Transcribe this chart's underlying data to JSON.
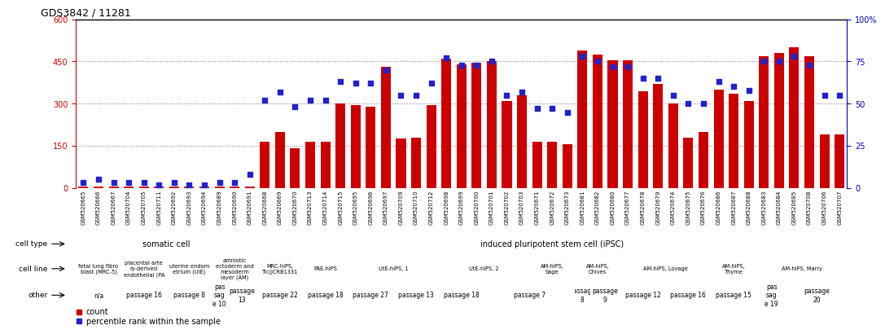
{
  "title": "GDS3842 / 11281",
  "samples": [
    "GSM520665",
    "GSM520666",
    "GSM520667",
    "GSM520704",
    "GSM520705",
    "GSM520711",
    "GSM520692",
    "GSM520693",
    "GSM520694",
    "GSM520689",
    "GSM520690",
    "GSM520691",
    "GSM520668",
    "GSM520669",
    "GSM520670",
    "GSM520713",
    "GSM520714",
    "GSM520715",
    "GSM520695",
    "GSM520696",
    "GSM520697",
    "GSM520709",
    "GSM520710",
    "GSM520712",
    "GSM520698",
    "GSM520699",
    "GSM520700",
    "GSM520701",
    "GSM520702",
    "GSM520703",
    "GSM520671",
    "GSM520672",
    "GSM520673",
    "GSM520681",
    "GSM520682",
    "GSM520680",
    "GSM520677",
    "GSM520678",
    "GSM520679",
    "GSM520674",
    "GSM520675",
    "GSM520676",
    "GSM520686",
    "GSM520687",
    "GSM520688",
    "GSM520683",
    "GSM520684",
    "GSM520685",
    "GSM520708",
    "GSM520706",
    "GSM520707"
  ],
  "counts": [
    5,
    5,
    5,
    5,
    5,
    5,
    5,
    5,
    5,
    5,
    5,
    5,
    165,
    200,
    140,
    165,
    165,
    300,
    295,
    290,
    430,
    175,
    180,
    295,
    460,
    440,
    445,
    450,
    310,
    330,
    165,
    165,
    155,
    490,
    475,
    455,
    455,
    345,
    370,
    300,
    180,
    200,
    350,
    335,
    310,
    470,
    480,
    500,
    470,
    190,
    190
  ],
  "percentile_ranks": [
    3,
    5,
    3,
    3,
    3,
    2,
    3,
    2,
    2,
    3,
    3,
    8,
    52,
    57,
    48,
    52,
    52,
    63,
    62,
    62,
    70,
    55,
    55,
    62,
    77,
    73,
    73,
    75,
    55,
    57,
    47,
    47,
    45,
    78,
    75,
    72,
    72,
    65,
    65,
    55,
    50,
    50,
    63,
    60,
    58,
    75,
    75,
    78,
    73,
    55,
    55
  ],
  "ylim_left": [
    0,
    600
  ],
  "yticks_left": [
    0,
    150,
    300,
    450,
    600
  ],
  "ylim_right": [
    0,
    100
  ],
  "yticks_right": [
    0,
    25,
    50,
    75,
    100
  ],
  "bar_color": "#cc0000",
  "dot_color": "#2222cc",
  "cell_type_groups": [
    {
      "label": "somatic cell",
      "start": 0,
      "end": 11,
      "color": "#90ee90"
    },
    {
      "label": "induced pluripotent stem cell (iPSC)",
      "start": 12,
      "end": 50,
      "color": "#90ee90"
    }
  ],
  "cell_line_groups": [
    {
      "label": "fetal lung fibro\nblast (MRC-5)",
      "start": 0,
      "end": 2,
      "color": "#c8c8e0"
    },
    {
      "label": "placental arte\nry-derived\nendothelial (PA",
      "start": 3,
      "end": 5,
      "color": "#c8c8e0"
    },
    {
      "label": "uterine endom\netrium (UiE)",
      "start": 6,
      "end": 8,
      "color": "#c8c8e0"
    },
    {
      "label": "amniotic\nectoderm and\nmesoderm\nlayer (AM)",
      "start": 9,
      "end": 11,
      "color": "#c8c8e0"
    },
    {
      "label": "MRC-hiPS,\nTic(JCRB1331",
      "start": 12,
      "end": 14,
      "color": "#c8c8e0"
    },
    {
      "label": "PAE-hiPS",
      "start": 15,
      "end": 17,
      "color": "#c8c8e0"
    },
    {
      "label": "UtE-hiPS, 1",
      "start": 18,
      "end": 23,
      "color": "#c8c8e0"
    },
    {
      "label": "UtE-hiPS, 2",
      "start": 24,
      "end": 29,
      "color": "#c8c8e0"
    },
    {
      "label": "AM-hiPS,\nSage",
      "start": 30,
      "end": 32,
      "color": "#c8c8e0"
    },
    {
      "label": "AM-hiPS,\nChives",
      "start": 33,
      "end": 35,
      "color": "#c8c8e0"
    },
    {
      "label": "AM-hiPS, Lovage",
      "start": 36,
      "end": 41,
      "color": "#c8c8e0"
    },
    {
      "label": "AM-hiPS,\nThyme",
      "start": 42,
      "end": 44,
      "color": "#c8c8e0"
    },
    {
      "label": "AM-hiPS, Marry",
      "start": 45,
      "end": 50,
      "color": "#c8c8e0"
    }
  ],
  "other_groups": [
    {
      "label": "n/a",
      "start": 0,
      "end": 2,
      "color": "#f0c8b8"
    },
    {
      "label": "passage 16",
      "start": 3,
      "end": 5,
      "color": "#f0a090"
    },
    {
      "label": "passage 8",
      "start": 6,
      "end": 8,
      "color": "#f0a090"
    },
    {
      "label": "pas\nsag\ne 10",
      "start": 9,
      "end": 9,
      "color": "#f0a090"
    },
    {
      "label": "passage\n13",
      "start": 10,
      "end": 11,
      "color": "#f0a090"
    },
    {
      "label": "passage 22",
      "start": 12,
      "end": 14,
      "color": "#f0a090"
    },
    {
      "label": "passage 18",
      "start": 15,
      "end": 17,
      "color": "#f0a090"
    },
    {
      "label": "passage 27",
      "start": 18,
      "end": 20,
      "color": "#f0a090"
    },
    {
      "label": "passage 13",
      "start": 21,
      "end": 23,
      "color": "#f0c8b8"
    },
    {
      "label": "passage 18",
      "start": 24,
      "end": 26,
      "color": "#f0a090"
    },
    {
      "label": "passage 7",
      "start": 27,
      "end": 32,
      "color": "#f8e0d8"
    },
    {
      "label": "passage\n8",
      "start": 33,
      "end": 33,
      "color": "#f8e0d8"
    },
    {
      "label": "passage\n9",
      "start": 34,
      "end": 35,
      "color": "#f8e0d8"
    },
    {
      "label": "passage 12",
      "start": 36,
      "end": 38,
      "color": "#f0a090"
    },
    {
      "label": "passage 16",
      "start": 39,
      "end": 41,
      "color": "#f0a090"
    },
    {
      "label": "passage 15",
      "start": 42,
      "end": 44,
      "color": "#f0a090"
    },
    {
      "label": "pas\nsag\ne 19",
      "start": 45,
      "end": 46,
      "color": "#f0a090"
    },
    {
      "label": "passage\n20",
      "start": 47,
      "end": 50,
      "color": "#f0a090"
    }
  ],
  "bg_color": "#ffffff",
  "grid_color": "#888888",
  "left_axis_color": "#cc0000",
  "right_axis_color": "#0000cc",
  "xtick_bg_color": "#d8d8d8"
}
